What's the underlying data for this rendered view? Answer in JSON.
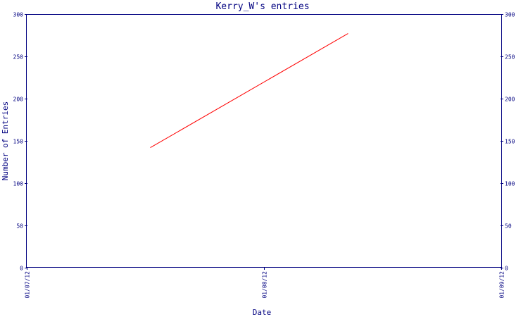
{
  "chart_data": {
    "type": "line",
    "title": "Kerry_W's entries",
    "xlabel": "Date",
    "ylabel": "Number of Entries",
    "x_ticks": [
      "01/07/12",
      "01/08/12",
      "01/09/12"
    ],
    "y_ticks": [
      0,
      50,
      100,
      150,
      200,
      250,
      300
    ],
    "xlim": [
      "01/07/12",
      "01/09/12"
    ],
    "ylim": [
      0,
      300
    ],
    "grid": false,
    "series": [
      {
        "x": [
          "01/07/12 12:30",
          "01/08/12 08:30"
        ],
        "values": [
          142,
          277
        ]
      }
    ]
  },
  "colors": {
    "axis": "#000080",
    "text": "#000080",
    "line": "#ff0000",
    "background": "#ffffff"
  }
}
